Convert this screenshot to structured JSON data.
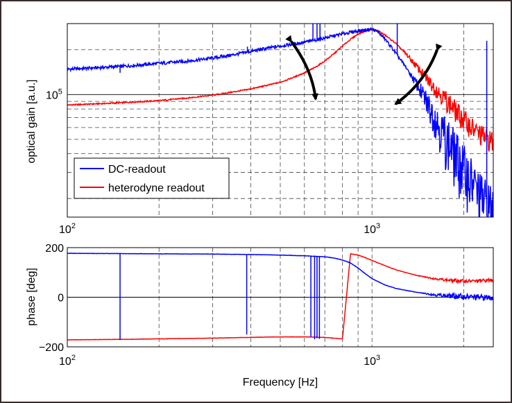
{
  "chart_data": [
    {
      "type": "line",
      "xscale": "log",
      "yscale": "log",
      "xlim": [
        100,
        2500
      ],
      "ylim": [
        15000,
        300000
      ],
      "ylabel": "optical gain [a.u.]",
      "xticks": [
        {
          "value": 100,
          "base": "10",
          "exp": "2"
        },
        {
          "value": 1000,
          "base": "10",
          "exp": "3"
        }
      ],
      "yticks": [
        {
          "value": 100000,
          "base": "10",
          "exp": "5"
        }
      ],
      "grid": true,
      "legend": "lower-left",
      "series": [
        {
          "name": "DC-readout",
          "color": "#0000ff",
          "x": [
            100,
            130,
            160,
            200,
            250,
            300,
            350,
            400,
            450,
            500,
            550,
            600,
            650,
            700,
            750,
            800,
            850,
            900,
            950,
            1000,
            1050,
            1100,
            1150,
            1200,
            1300,
            1400,
            1500,
            1600,
            1700,
            1800,
            1900,
            2000,
            2100,
            2200,
            2300,
            2400,
            2500
          ],
          "y": [
            148000,
            152000,
            156000,
            162000,
            168000,
            176000,
            185000,
            195000,
            204000,
            212000,
            218000,
            225000,
            232000,
            240000,
            248000,
            256000,
            262000,
            268000,
            272000,
            275000,
            262000,
            238000,
            212000,
            188000,
            150000,
            118000,
            92000,
            72000,
            56000,
            46000,
            38000,
            32000,
            27000,
            23000,
            20000,
            18000,
            17000
          ],
          "spikes": [
            {
              "x": 149,
              "y": 140000
            },
            {
              "x": 390,
              "y": 210000
            },
            {
              "x": 640,
              "y": 300000
            },
            {
              "x": 660,
              "y": 300000
            },
            {
              "x": 675,
              "y": 300000
            },
            {
              "x": 1210,
              "y": 300000
            },
            {
              "x": 2380,
              "y": 230000
            }
          ]
        },
        {
          "name": "heterodyne readout",
          "color": "#ff0000",
          "x": [
            100,
            150,
            200,
            250,
            300,
            350,
            400,
            450,
            500,
            550,
            600,
            650,
            700,
            750,
            800,
            850,
            900,
            950,
            1000,
            1050,
            1100,
            1200,
            1300,
            1400,
            1500,
            1600,
            1700,
            1800,
            1900,
            2000,
            2200,
            2500
          ],
          "y": [
            85000,
            88000,
            91000,
            95000,
            99000,
            104000,
            109000,
            115000,
            121000,
            130000,
            140000,
            152000,
            168000,
            188000,
            212000,
            235000,
            255000,
            268000,
            275000,
            268000,
            252000,
            220000,
            185000,
            155000,
            130000,
            112000,
            98000,
            86000,
            76000,
            68000,
            56000,
            48000
          ]
        }
      ]
    },
    {
      "type": "line",
      "xscale": "log",
      "xlim": [
        100,
        2500
      ],
      "ylim": [
        -200,
        200
      ],
      "xlabel": "Frequency [Hz]",
      "ylabel": "phase [deg]",
      "xticks": [
        {
          "value": 100,
          "base": "10",
          "exp": "2"
        },
        {
          "value": 1000,
          "base": "10",
          "exp": "3"
        }
      ],
      "yticks": [
        {
          "value": 200,
          "label": "200"
        },
        {
          "value": 0,
          "label": "0"
        },
        {
          "value": -200,
          "label": "−200"
        }
      ],
      "grid": true,
      "series": [
        {
          "name": "DC-readout",
          "color": "#0000ff",
          "x": [
            100,
            150,
            200,
            300,
            400,
            500,
            600,
            700,
            750,
            800,
            850,
            900,
            950,
            1000,
            1100,
            1200,
            1400,
            1600,
            1800,
            2000,
            2200,
            2500
          ],
          "y": [
            177,
            176,
            175,
            174,
            172,
            170,
            167,
            163,
            158,
            150,
            138,
            118,
            95,
            75,
            50,
            35,
            20,
            10,
            5,
            2,
            0,
            -2
          ],
          "spikes": [
            {
              "x": 149,
              "y": -172
            },
            {
              "x": 388,
              "y": -150
            },
            {
              "x": 630,
              "y": -160
            },
            {
              "x": 648,
              "y": -170
            },
            {
              "x": 660,
              "y": -165
            },
            {
              "x": 672,
              "y": -168
            }
          ]
        },
        {
          "name": "heterodyne readout",
          "color": "#ff0000",
          "x": [
            100,
            150,
            200,
            300,
            400,
            500,
            600,
            700,
            790,
            800,
            850,
            900,
            950,
            1000,
            1100,
            1200,
            1400,
            1600,
            1800,
            2000,
            2200,
            2500
          ],
          "y": [
            -172,
            -170,
            -168,
            -165,
            -162,
            -160,
            -160,
            -162,
            -168,
            -168,
            175,
            170,
            160,
            148,
            128,
            110,
            88,
            75,
            68,
            65,
            65,
            70
          ]
        }
      ]
    }
  ]
}
